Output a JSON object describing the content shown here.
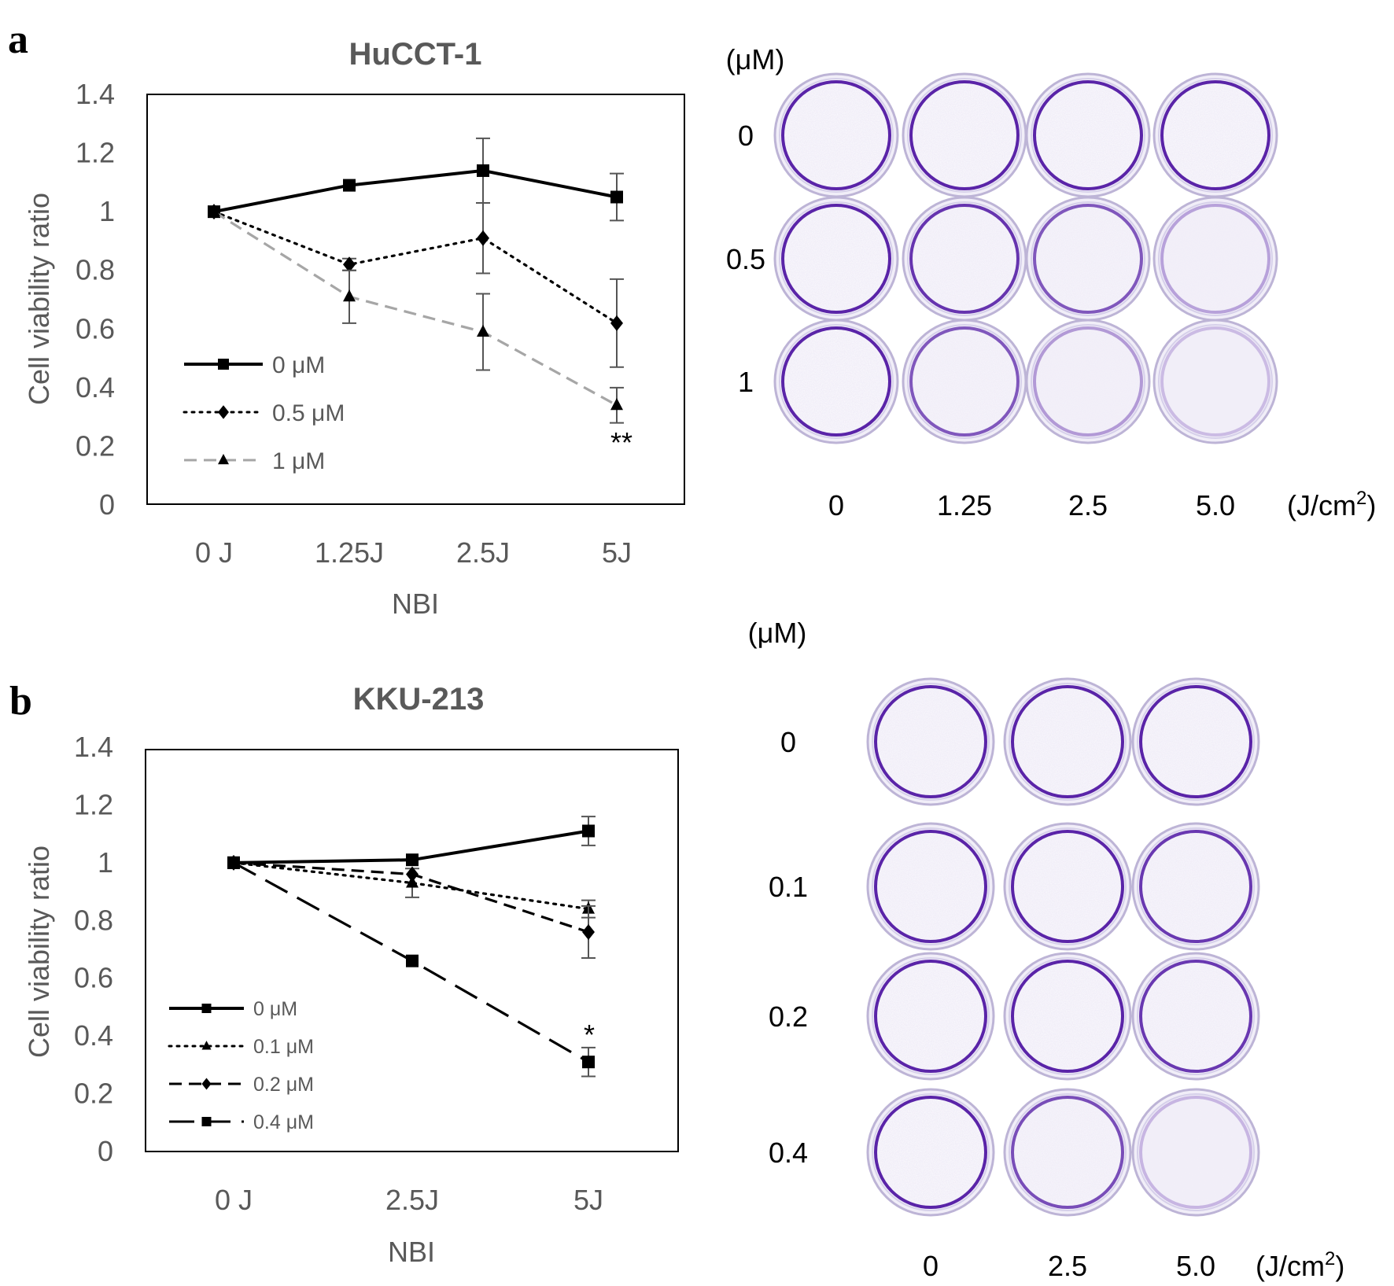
{
  "panels": {
    "a_letter": "a",
    "b_letter": "b"
  },
  "colors": {
    "series_black": "#000000",
    "series_gray": "#a6a6a6",
    "axis_text": "#595959",
    "crystal_violet": "#6b2fc4"
  },
  "chart_data": [
    {
      "panel": "a",
      "type": "line",
      "title": "HuCCT-1",
      "xlabel": "NBI",
      "ylabel": "Cell viability ratio",
      "categories": [
        "0 J",
        "1.25J",
        "2.5J",
        "5J"
      ],
      "ylim": [
        0,
        1.4
      ],
      "yticks": [
        "0",
        "0.2",
        "0.4",
        "0.6",
        "0.8",
        "1",
        "1.2",
        "1.4"
      ],
      "grid": false,
      "legend_position": "bottom-left",
      "series": [
        {
          "name": "0 μM",
          "marker": "square",
          "line": "solid",
          "color": "#000000",
          "values": [
            1.0,
            1.09,
            1.14,
            1.05
          ],
          "errors": [
            0,
            0,
            0.11,
            0.08
          ]
        },
        {
          "name": "0.5 μM",
          "marker": "diamond",
          "line": "dotted",
          "color": "#000000",
          "values": [
            1.0,
            0.82,
            0.91,
            0.62
          ],
          "errors": [
            0,
            0.02,
            0.12,
            0.15
          ]
        },
        {
          "name": "1 μM",
          "marker": "triangle",
          "line": "dashed",
          "color": "#a6a6a6",
          "values": [
            1.0,
            0.71,
            0.59,
            0.34
          ],
          "errors": [
            0,
            0.09,
            0.13,
            0.06
          ]
        }
      ],
      "annotations": [
        {
          "text": "**",
          "category": "5J"
        }
      ]
    },
    {
      "panel": "b",
      "type": "line",
      "title": "KKU-213",
      "xlabel": "NBI",
      "ylabel": "Cell viability ratio",
      "categories": [
        "0 J",
        "2.5J",
        "5J"
      ],
      "ylim": [
        0,
        1.4
      ],
      "yticks": [
        "0",
        "0.2",
        "0.4",
        "0.6",
        "0.8",
        "1",
        "1.2",
        "1.4"
      ],
      "grid": false,
      "legend_position": "bottom-left",
      "series": [
        {
          "name": "0 μM",
          "marker": "square",
          "line": "solid",
          "color": "#000000",
          "values": [
            1.0,
            1.01,
            1.11
          ],
          "errors": [
            0,
            0,
            0.05
          ]
        },
        {
          "name": "0.1 μM",
          "marker": "triangle",
          "line": "dotted",
          "color": "#000000",
          "values": [
            1.0,
            0.93,
            0.84
          ],
          "errors": [
            0,
            0.05,
            0.03
          ]
        },
        {
          "name": "0.2 μM",
          "marker": "diamond",
          "line": "dashed",
          "color": "#000000",
          "values": [
            1.0,
            0.96,
            0.76
          ],
          "errors": [
            0,
            0,
            0.09
          ]
        },
        {
          "name": "0.4 μM",
          "marker": "square",
          "line": "longdash",
          "color": "#000000",
          "values": [
            1.0,
            0.66,
            0.31
          ],
          "errors": [
            0,
            0,
            0.05
          ]
        }
      ],
      "annotations": [
        {
          "text": "*",
          "category": "5J"
        }
      ]
    }
  ],
  "plates": {
    "a": {
      "unit_label": "(μM)",
      "row_labels": [
        "0",
        "0.5",
        "1"
      ],
      "col_labels": [
        "0",
        "1.25",
        "2.5",
        "5.0"
      ],
      "dose_label": "(J/cm",
      "dose_sup": "2",
      "dose_close": ")",
      "stain_levels": [
        [
          0.92,
          0.93,
          0.9,
          0.92
        ],
        [
          0.93,
          0.72,
          0.55,
          0.18
        ],
        [
          0.95,
          0.55,
          0.22,
          0.05
        ]
      ]
    },
    "b": {
      "unit_label": "(μM)",
      "row_labels": [
        "0",
        "0.1",
        "0.2",
        "0.4"
      ],
      "col_labels": [
        "0",
        "2.5",
        "5.0"
      ],
      "dose_label": "(J/cm",
      "dose_sup": "2",
      "dose_close": ")",
      "stain_levels": [
        [
          0.8,
          0.82,
          0.8
        ],
        [
          0.8,
          0.8,
          0.7
        ],
        [
          0.95,
          0.88,
          0.7
        ],
        [
          0.95,
          0.6,
          0.08
        ]
      ]
    }
  }
}
